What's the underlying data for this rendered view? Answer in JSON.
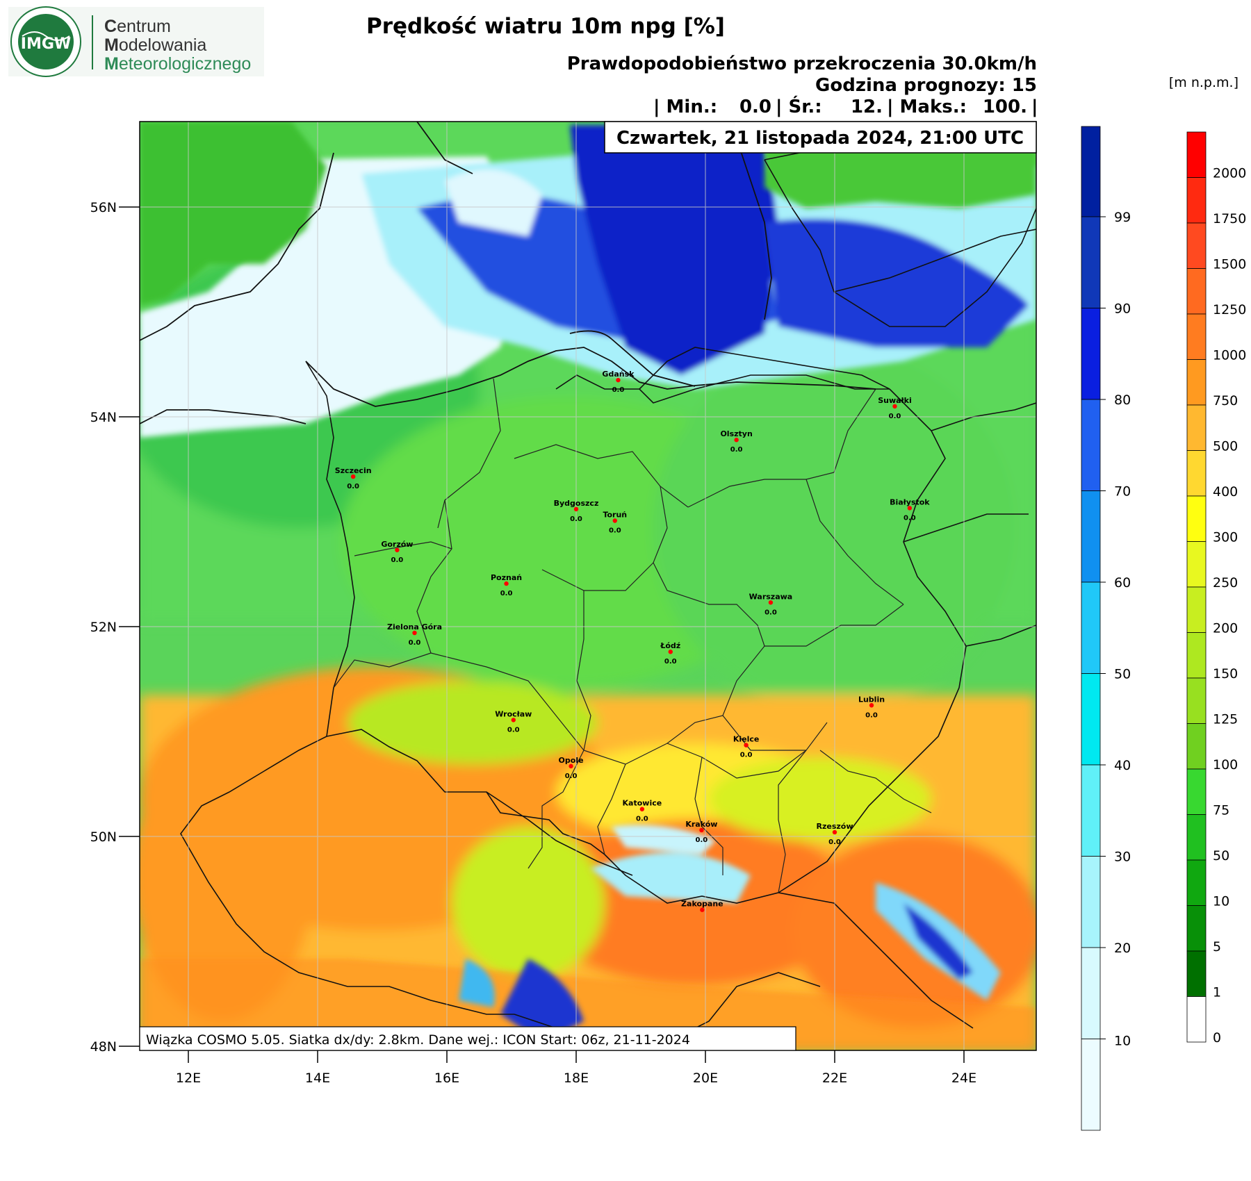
{
  "logo": {
    "initials": "IMGW",
    "lines": [
      {
        "cap": "C",
        "rest": "entrum"
      },
      {
        "cap": "M",
        "rest": "odelowania"
      },
      {
        "cap": "M",
        "rest": "eteorologicznego"
      }
    ],
    "colors": {
      "seal": "#1f7a3e",
      "text_dark": "#333333",
      "text_green": "#2e8b57"
    }
  },
  "header": {
    "title": "Prędkość wiatru 10m npg [%]",
    "subtitle": "Prawdopodobieństwo przekroczenia 30.0km/h",
    "forecast_hour": "Godzina prognozy: 15",
    "stats": {
      "min_label": "| Min.:",
      "min": "0.0",
      "avg_label": "| Śr.:",
      "avg": "12.",
      "max_label": "| Maks.:",
      "max": "100.",
      "end": "|"
    },
    "date": "Czwartek, 21 listopada 2024, 21:00 UTC"
  },
  "footer_note": "Wiązka COSMO 5.05. Siatka dx/dy: 2.8km. Dane wej.: ICON Start: 06z, 21-11-2024",
  "axes": {
    "lat_ticks": [
      "56N",
      "54N",
      "52N",
      "50N",
      "48N"
    ],
    "lon_ticks": [
      "12E",
      "14E",
      "16E",
      "18E",
      "20E",
      "22E",
      "24E"
    ]
  },
  "probability_scale": {
    "labels": [
      "99",
      "90",
      "80",
      "70",
      "60",
      "50",
      "40",
      "30",
      "20",
      "10"
    ],
    "colors": [
      "#0020a0",
      "#1038b8",
      "#0a1fe0",
      "#2060f0",
      "#1090f0",
      "#20c8f8",
      "#00e8f0",
      "#60f0f8",
      "#a8f4fc",
      "#d8fafe",
      "#ecfcff"
    ]
  },
  "elevation_scale": {
    "unit": "[m n.p.m.]",
    "labels": [
      "2000",
      "1750",
      "1500",
      "1250",
      "1000",
      "750",
      "500",
      "400",
      "300",
      "250",
      "200",
      "150",
      "125",
      "100",
      "75",
      "50",
      "10",
      "5",
      "1",
      "0"
    ],
    "colors": [
      "#ff0000",
      "#ff2a10",
      "#ff4a20",
      "#ff6a20",
      "#ff7c20",
      "#ff9a20",
      "#ffb830",
      "#ffd830",
      "#ffff10",
      "#e8f820",
      "#c8ee20",
      "#aee820",
      "#98e020",
      "#70d020",
      "#38d830",
      "#20c020",
      "#10a810",
      "#089008",
      "#007000",
      "#ffffff"
    ]
  },
  "cities": [
    {
      "name": "Gdańsk",
      "value": "0.0",
      "lon": 18.65,
      "lat": 54.35
    },
    {
      "name": "Suwałki",
      "value": "0.0",
      "lon": 22.93,
      "lat": 54.1
    },
    {
      "name": "Olsztyn",
      "value": "0.0",
      "lon": 20.48,
      "lat": 53.78
    },
    {
      "name": "Szczecin",
      "value": "0.0",
      "lon": 14.55,
      "lat": 53.43
    },
    {
      "name": "Bydgoszcz",
      "value": "0.0",
      "lon": 18.0,
      "lat": 53.12
    },
    {
      "name": "Toruń",
      "value": "0.0",
      "lon": 18.6,
      "lat": 53.01
    },
    {
      "name": "Białystok",
      "value": "0.0",
      "lon": 23.16,
      "lat": 53.13
    },
    {
      "name": "Gorzów",
      "value": "0.0",
      "lon": 15.23,
      "lat": 52.73
    },
    {
      "name": "Poznań",
      "value": "0.0",
      "lon": 16.92,
      "lat": 52.41
    },
    {
      "name": "Warszawa",
      "value": "0.0",
      "lon": 21.01,
      "lat": 52.23
    },
    {
      "name": "Zielona Góra",
      "value": "0.0",
      "lon": 15.5,
      "lat": 51.94
    },
    {
      "name": "Łódź",
      "value": "0.0",
      "lon": 19.46,
      "lat": 51.76
    },
    {
      "name": "Lublin",
      "value": "0.0",
      "lon": 22.57,
      "lat": 51.25
    },
    {
      "name": "Wrocław",
      "value": "0.0",
      "lon": 17.03,
      "lat": 51.11
    },
    {
      "name": "Kielce",
      "value": "0.0",
      "lon": 20.63,
      "lat": 50.87
    },
    {
      "name": "Opole",
      "value": "0.0",
      "lon": 17.92,
      "lat": 50.67
    },
    {
      "name": "Katowice",
      "value": "0.0",
      "lon": 19.02,
      "lat": 50.26
    },
    {
      "name": "Kraków",
      "value": "0.0",
      "lon": 19.94,
      "lat": 50.06
    },
    {
      "name": "Rzeszów",
      "value": "0.0",
      "lon": 22.0,
      "lat": 50.04
    },
    {
      "name": "Zakopane",
      "value": "",
      "lon": 19.95,
      "lat": 49.3
    }
  ]
}
